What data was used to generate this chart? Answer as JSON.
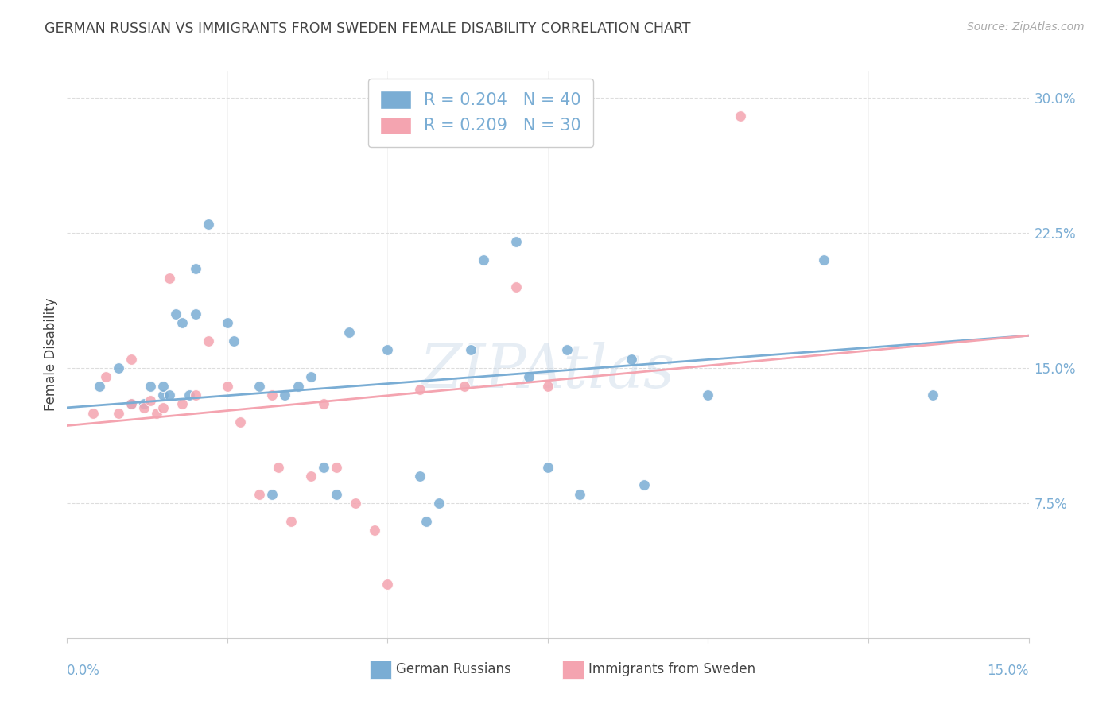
{
  "title": "GERMAN RUSSIAN VS IMMIGRANTS FROM SWEDEN FEMALE DISABILITY CORRELATION CHART",
  "source": "Source: ZipAtlas.com",
  "ylabel": "Female Disability",
  "y_ticks": [
    0.075,
    0.15,
    0.225,
    0.3
  ],
  "y_tick_labels": [
    "7.5%",
    "15.0%",
    "22.5%",
    "30.0%"
  ],
  "x_min": 0.0,
  "x_max": 0.15,
  "y_min": 0.0,
  "y_max": 0.315,
  "legend_r1": "0.204",
  "legend_n1": "40",
  "legend_r2": "0.209",
  "legend_n2": "30",
  "color_blue": "#7aadd4",
  "color_pink": "#f4a4b0",
  "line_color_blue": "#7aadd4",
  "line_color_pink": "#f4a4b0",
  "watermark": "ZIPAtlas",
  "blue_scatter_x": [
    0.005,
    0.008,
    0.01,
    0.012,
    0.013,
    0.015,
    0.015,
    0.016,
    0.017,
    0.018,
    0.019,
    0.02,
    0.02,
    0.022,
    0.025,
    0.026,
    0.03,
    0.032,
    0.034,
    0.036,
    0.038,
    0.04,
    0.042,
    0.044,
    0.05,
    0.055,
    0.056,
    0.058,
    0.063,
    0.065,
    0.07,
    0.072,
    0.075,
    0.078,
    0.08,
    0.088,
    0.09,
    0.1,
    0.118,
    0.135
  ],
  "blue_scatter_y": [
    0.14,
    0.15,
    0.13,
    0.13,
    0.14,
    0.135,
    0.14,
    0.135,
    0.18,
    0.175,
    0.135,
    0.18,
    0.205,
    0.23,
    0.175,
    0.165,
    0.14,
    0.08,
    0.135,
    0.14,
    0.145,
    0.095,
    0.08,
    0.17,
    0.16,
    0.09,
    0.065,
    0.075,
    0.16,
    0.21,
    0.22,
    0.145,
    0.095,
    0.16,
    0.08,
    0.155,
    0.085,
    0.135,
    0.21,
    0.135
  ],
  "pink_scatter_x": [
    0.004,
    0.006,
    0.008,
    0.01,
    0.01,
    0.012,
    0.013,
    0.014,
    0.015,
    0.016,
    0.018,
    0.02,
    0.022,
    0.025,
    0.027,
    0.03,
    0.032,
    0.033,
    0.035,
    0.038,
    0.04,
    0.042,
    0.045,
    0.048,
    0.05,
    0.055,
    0.062,
    0.07,
    0.075,
    0.105
  ],
  "pink_scatter_y": [
    0.125,
    0.145,
    0.125,
    0.13,
    0.155,
    0.128,
    0.132,
    0.125,
    0.128,
    0.2,
    0.13,
    0.135,
    0.165,
    0.14,
    0.12,
    0.08,
    0.135,
    0.095,
    0.065,
    0.09,
    0.13,
    0.095,
    0.075,
    0.06,
    0.03,
    0.138,
    0.14,
    0.195,
    0.14,
    0.29
  ],
  "blue_line_x": [
    0.0,
    0.15
  ],
  "blue_line_y": [
    0.128,
    0.168
  ],
  "pink_line_x": [
    0.0,
    0.15
  ],
  "pink_line_y": [
    0.118,
    0.168
  ],
  "legend_label_blue": "German Russians",
  "legend_label_pink": "Immigrants from Sweden",
  "title_color": "#444444",
  "label_color": "#444444",
  "tick_color": "#7aadd4",
  "grid_color": "#dddddd",
  "source_color": "#aaaaaa"
}
